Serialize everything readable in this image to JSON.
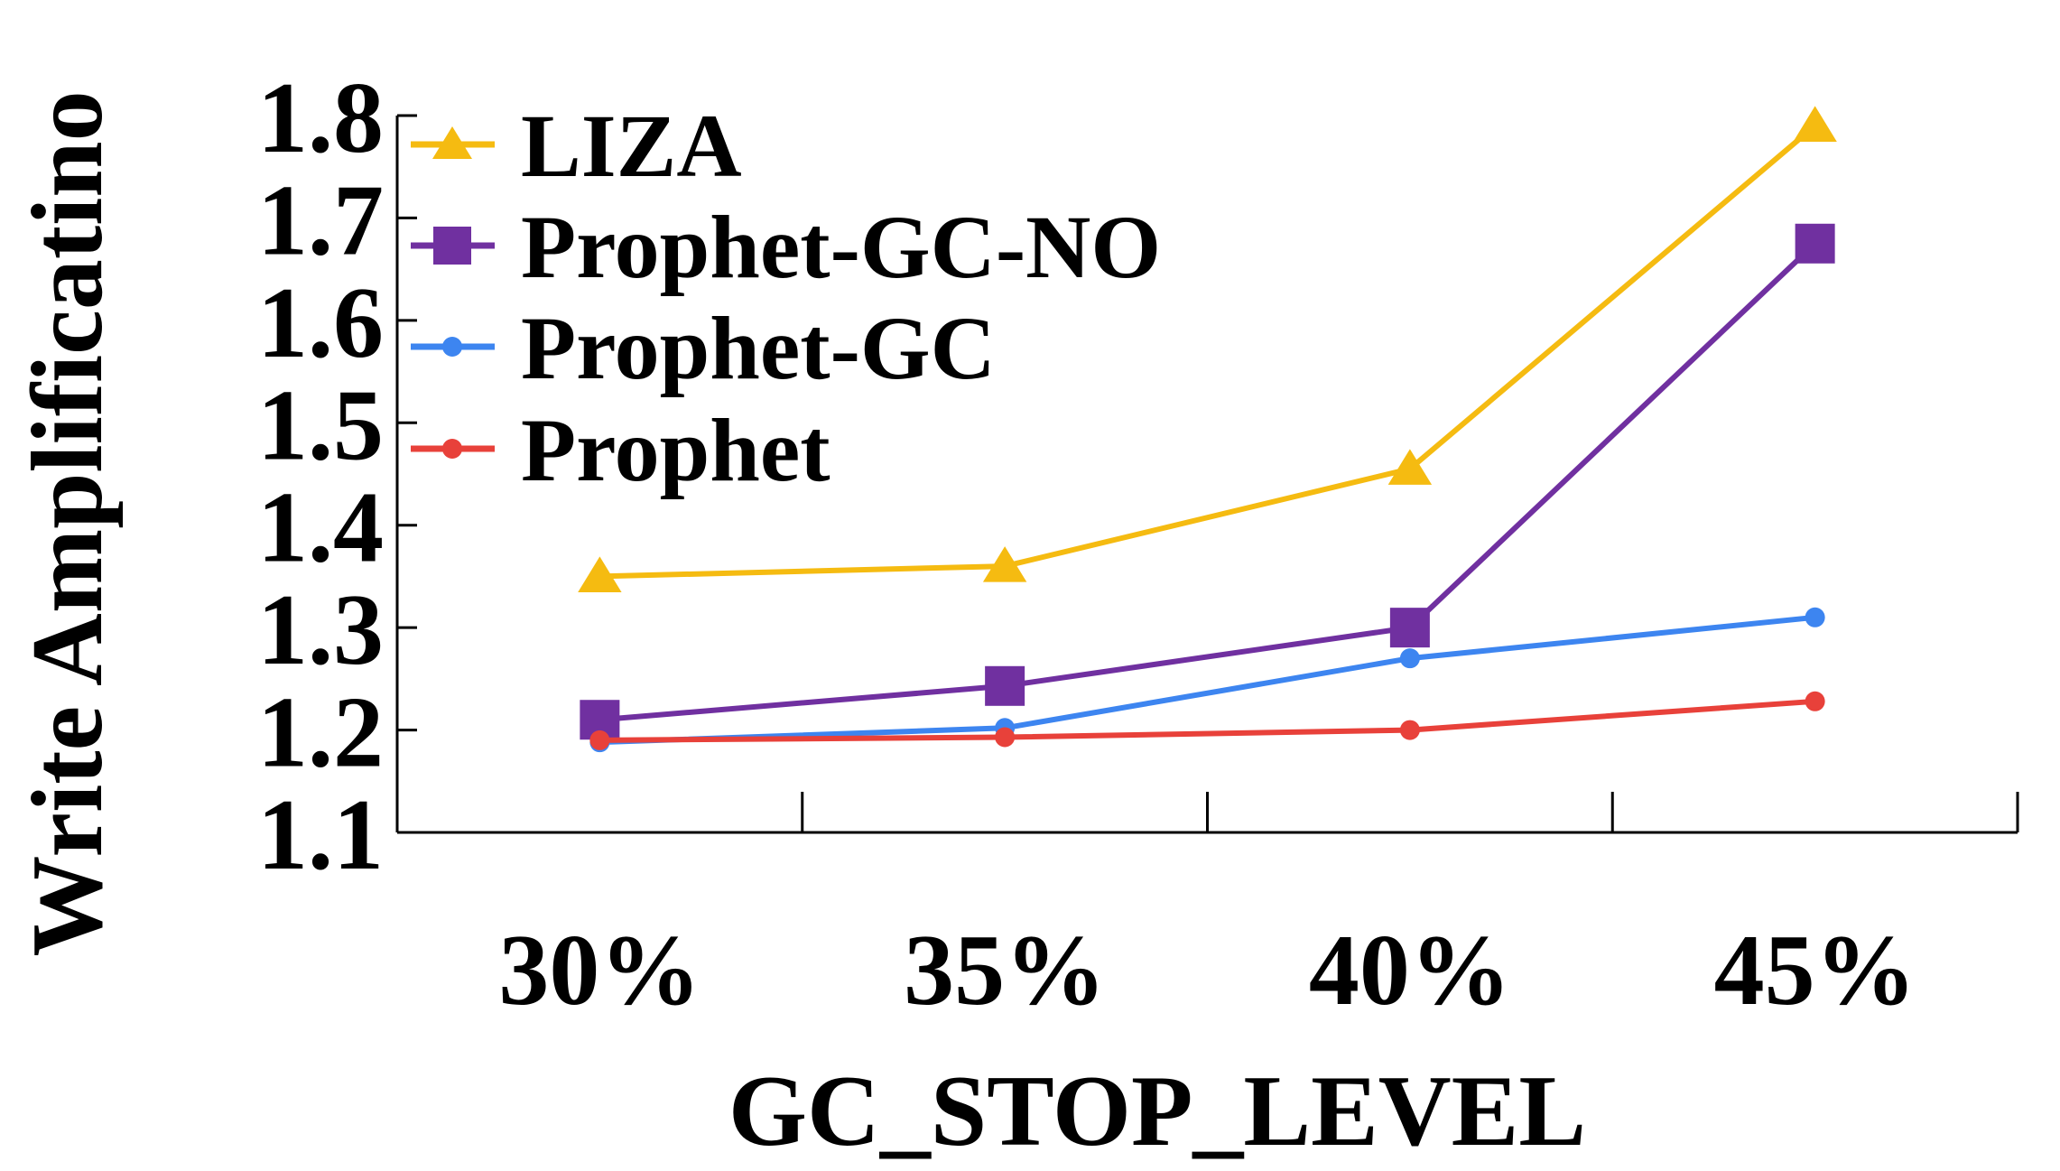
{
  "chart_data": {
    "type": "line",
    "title": "",
    "xlabel": "GC_STOP_LEVEL",
    "ylabel": "Write Amplificatino",
    "categories": [
      "30%",
      "35%",
      "40%",
      "45%"
    ],
    "yticks": [
      "1.1",
      "1.2",
      "1.3",
      "1.4",
      "1.5",
      "1.6",
      "1.7",
      "1.8"
    ],
    "ylim": [
      1.1,
      1.8
    ],
    "grid": false,
    "legend": "top-left",
    "series": [
      {
        "name": "LIZA",
        "marker": "triangle",
        "color": "#F5BB11",
        "values": [
          1.35,
          1.36,
          1.455,
          1.79
        ]
      },
      {
        "name": "Prophet-GC-NO",
        "marker": "square",
        "color": "#7030A0",
        "values": [
          1.21,
          1.243,
          1.3,
          1.675
        ]
      },
      {
        "name": "Prophet-GC",
        "marker": "circle",
        "color": "#3D85F0",
        "values": [
          1.188,
          1.202,
          1.27,
          1.31
        ]
      },
      {
        "name": "Prophet",
        "marker": "circle",
        "color": "#E8413A",
        "values": [
          1.19,
          1.193,
          1.2,
          1.228
        ]
      }
    ]
  }
}
